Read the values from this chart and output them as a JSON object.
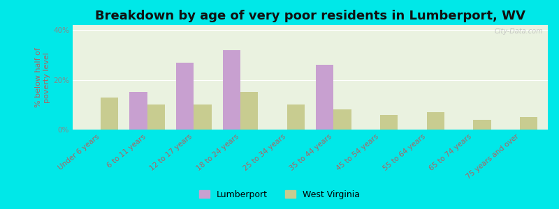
{
  "title": "Breakdown by age of very poor residents in Lumberport, WV",
  "ylabel": "% below half of\npoverty level",
  "categories": [
    "Under 6 years",
    "6 to 11 years",
    "12 to 17 years",
    "18 to 24 years",
    "25 to 34 years",
    "35 to 44 years",
    "45 to 54 years",
    "55 to 64 years",
    "65 to 74 years",
    "75 years and over"
  ],
  "lumberport": [
    0,
    15.0,
    27.0,
    32.0,
    0,
    26.0,
    0,
    0,
    0,
    0
  ],
  "west_virginia": [
    13.0,
    10.0,
    10.0,
    15.0,
    10.0,
    8.0,
    6.0,
    7.0,
    4.0,
    5.0
  ],
  "lumberport_color": "#c8a0d0",
  "wv_color": "#c8cc90",
  "background_outer": "#00e8e8",
  "background_plot": "#eaf2e0",
  "ylim": [
    0,
    42
  ],
  "yticks": [
    0,
    20,
    40
  ],
  "ytick_labels": [
    "0%",
    "20%",
    "40%"
  ],
  "bar_width": 0.38,
  "title_fontsize": 13,
  "axis_label_fontsize": 8,
  "tick_fontsize": 7.5,
  "xtick_color": "#b06060",
  "ytick_color": "#888888",
  "ylabel_color": "#b06060",
  "legend_fontsize": 9,
  "watermark": "City-Data.com"
}
